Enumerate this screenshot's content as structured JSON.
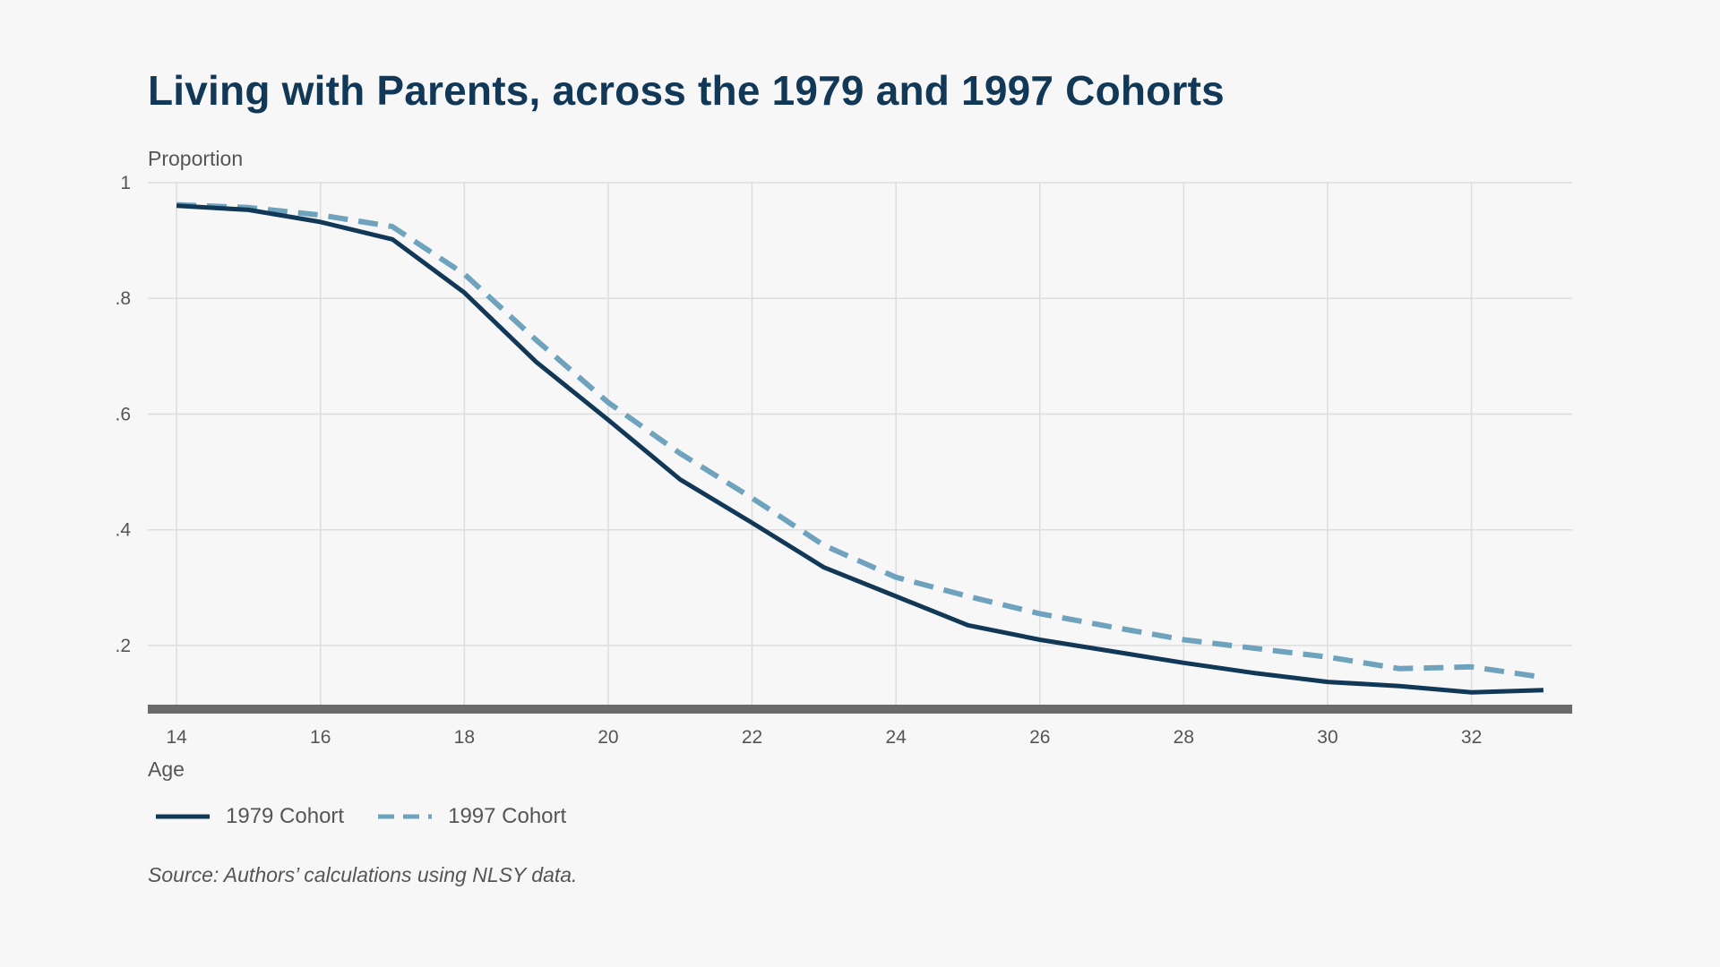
{
  "title": "Living with Parents, across the 1979 and 1997 Cohorts",
  "source": "Source: Authors’ calculations using NLSY data.",
  "colors": {
    "series_1979": "#113856",
    "series_1997": "#6fa3bd",
    "grid": "#dddddd",
    "baseline": "#6b6b6b",
    "title": "#113856"
  },
  "chart_data": {
    "type": "line",
    "title": "Living with Parents, across the 1979 and 1997 Cohorts",
    "xlabel": "Age",
    "ylabel": "Proportion",
    "xlim": [
      13.6,
      33.4
    ],
    "ylim": [
      0.09,
      1.0
    ],
    "x_ticks": [
      14,
      16,
      18,
      20,
      22,
      24,
      26,
      28,
      30,
      32
    ],
    "x_tick_labels": [
      "14",
      "16",
      "18",
      "20",
      "22",
      "24",
      "26",
      "28",
      "30",
      "32"
    ],
    "y_ticks": [
      0.2,
      0.4,
      0.6,
      0.8,
      1.0
    ],
    "y_tick_labels": [
      ".2",
      ".4",
      ".6",
      ".8",
      "1"
    ],
    "grid": true,
    "legend_position": "bottom-left",
    "x": [
      14,
      15,
      16,
      17,
      18,
      19,
      20,
      21,
      22,
      23,
      24,
      25,
      26,
      27,
      28,
      29,
      30,
      31,
      32,
      33
    ],
    "series": [
      {
        "name": "1979 Cohort",
        "style": "solid",
        "values": [
          0.96,
          0.953,
          0.932,
          0.902,
          0.81,
          0.69,
          0.59,
          0.487,
          0.412,
          0.335,
          0.285,
          0.235,
          0.21,
          0.19,
          0.17,
          0.152,
          0.137,
          0.13,
          0.119,
          0.123
        ]
      },
      {
        "name": "1997 Cohort",
        "style": "dashed",
        "values": [
          0.962,
          0.957,
          0.944,
          0.924,
          0.842,
          0.728,
          0.62,
          0.532,
          0.455,
          0.373,
          0.318,
          0.285,
          0.255,
          0.232,
          0.21,
          0.195,
          0.18,
          0.16,
          0.163,
          0.145
        ]
      }
    ]
  }
}
